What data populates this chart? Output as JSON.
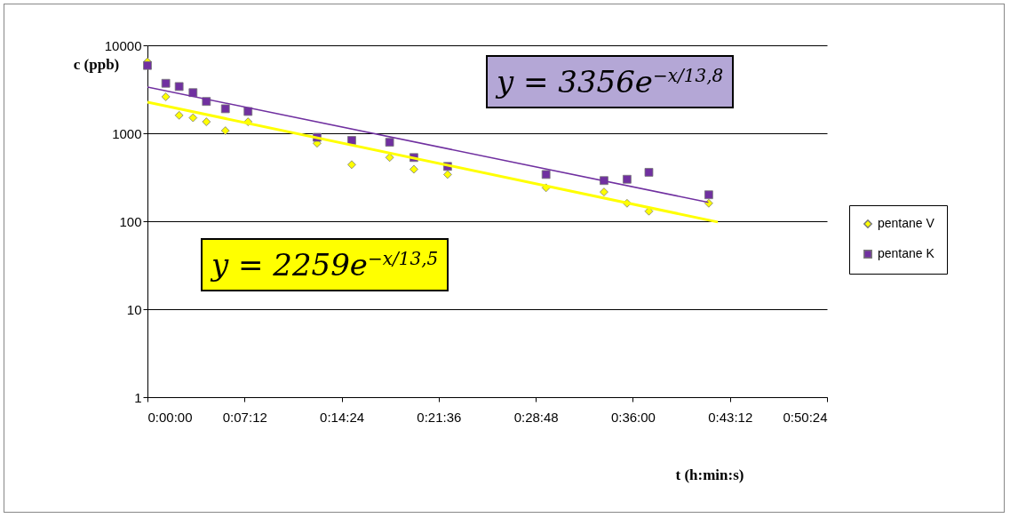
{
  "chart_data": {
    "type": "scatter",
    "xlabel": "t (h:min:s)",
    "ylabel": "c (ppb)",
    "log": "y",
    "grid": "y",
    "legend": "right",
    "xlim": [
      0,
      50.4
    ],
    "xticks": [
      {
        "value": 0,
        "label": "0:00:00"
      },
      {
        "value": 7.2,
        "label": "0:07:12"
      },
      {
        "value": 14.4,
        "label": "0:14:24"
      },
      {
        "value": 21.6,
        "label": "0:21:36"
      },
      {
        "value": 28.8,
        "label": "0:28:48"
      },
      {
        "value": 36,
        "label": "0:36:00"
      },
      {
        "value": 43.2,
        "label": "0:43:12"
      },
      {
        "value": 50.4,
        "label": "0:50:24"
      }
    ],
    "ylim": [
      1,
      10000
    ],
    "yticks": [
      1,
      10,
      100,
      1000,
      10000
    ],
    "series": [
      {
        "name": "pentane V",
        "marker": "diamond",
        "color": "#ffff00",
        "x": [
          0,
          1.36,
          2.35,
          3.38,
          4.37,
          5.78,
          7.46,
          12.58,
          15.15,
          17.96,
          19.76,
          22.26,
          29.56,
          33.86,
          35.57,
          37.19,
          41.63
        ],
        "values": [
          6500,
          2600,
          1600,
          1500,
          1350,
          1070,
          1350,
          770,
          440,
          530,
          390,
          340,
          240,
          215,
          160,
          130,
          160
        ]
      },
      {
        "name": "pentane K",
        "marker": "square",
        "color": "#7030a0",
        "x": [
          0,
          1.36,
          2.35,
          3.38,
          4.37,
          5.78,
          7.46,
          12.58,
          15.15,
          17.96,
          19.76,
          22.26,
          29.56,
          33.86,
          35.57,
          37.19,
          41.63
        ],
        "values": [
          5900,
          3700,
          3400,
          2900,
          2300,
          1900,
          1770,
          900,
          830,
          790,
          530,
          420,
          340,
          290,
          300,
          360,
          200
        ]
      },
      {
        "type": "line",
        "marker": "none",
        "color": "#ffff00",
        "x": [
          0,
          42.3
        ],
        "values": [
          2259,
          98
        ]
      },
      {
        "type": "line",
        "marker": "none",
        "color": "#7030a0",
        "x": [
          0,
          41.6
        ],
        "values": [
          3356,
          164
        ]
      }
    ],
    "annotations": [
      "y = 3356e$^{−x/13,8}$",
      "y = 2259e$^{−x/13,5}$"
    ]
  }
}
